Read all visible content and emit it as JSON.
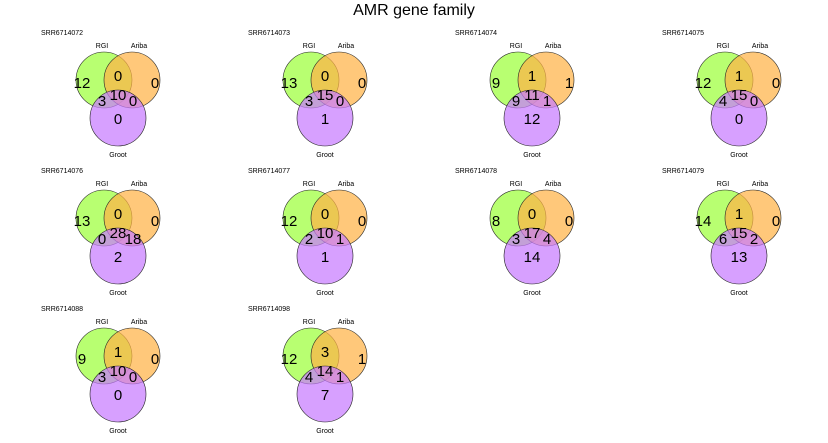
{
  "title": "AMR gene family",
  "colors": {
    "set1": "#9dff3a",
    "set2": "#ffb347",
    "set3": "#c77cff",
    "outline": "#222222"
  },
  "chart_data": {
    "type": "venn",
    "set_labels": [
      "RGI",
      "Ariba",
      "Groot"
    ],
    "region_order": [
      "RGI only",
      "Ariba only",
      "Groot only",
      "RGI & Ariba",
      "RGI & Groot",
      "Ariba & Groot",
      "RGI & Ariba & Groot"
    ],
    "panels": [
      {
        "sample": "SRR6714072",
        "values": [
          12,
          0,
          0,
          0,
          3,
          0,
          10
        ]
      },
      {
        "sample": "SRR6714073",
        "values": [
          13,
          0,
          1,
          0,
          3,
          0,
          15
        ]
      },
      {
        "sample": "SRR6714074",
        "values": [
          9,
          1,
          12,
          1,
          9,
          1,
          11
        ]
      },
      {
        "sample": "SRR6714075",
        "values": [
          12,
          0,
          0,
          1,
          4,
          0,
          15
        ]
      },
      {
        "sample": "SRR6714076",
        "values": [
          13,
          0,
          2,
          0,
          0,
          18,
          28
        ]
      },
      {
        "sample": "SRR6714077",
        "values": [
          12,
          0,
          1,
          0,
          2,
          1,
          10
        ]
      },
      {
        "sample": "SRR6714078",
        "values": [
          8,
          0,
          14,
          0,
          3,
          4,
          17
        ]
      },
      {
        "sample": "SRR6714079",
        "values": [
          14,
          0,
          13,
          1,
          6,
          2,
          15
        ]
      },
      {
        "sample": "SRR6714088",
        "values": [
          9,
          0,
          0,
          1,
          3,
          0,
          10
        ]
      },
      {
        "sample": "SRR6714098",
        "values": [
          12,
          1,
          7,
          3,
          4,
          1,
          14
        ]
      }
    ]
  }
}
